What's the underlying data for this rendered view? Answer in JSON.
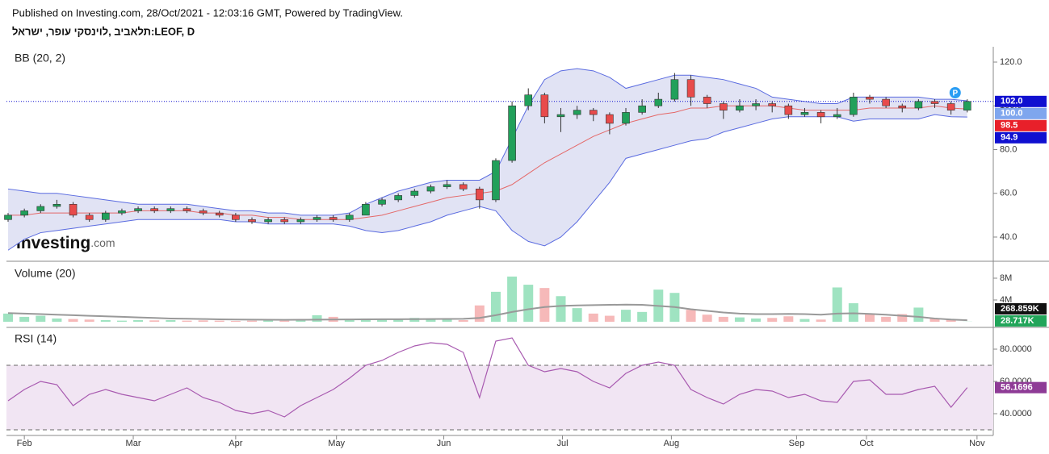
{
  "header": {
    "published": "Published on Investing.com, 28/Oct/2021 - 12:03:16 GMT, Powered by TradingView.",
    "symbol": "תלאביב ,לוינסקי עופר, ישראל:LEOF, D"
  },
  "watermark": {
    "brand": "Investing",
    "suffix": ".com"
  },
  "chart_data": [
    {
      "type": "candlestick",
      "title": "BB (20, 2)",
      "up_color": "#21a05a",
      "down_color": "#e84b4b",
      "open": [
        48,
        50,
        52,
        54,
        55,
        50,
        48,
        51,
        52,
        53,
        52,
        53,
        52,
        51,
        50,
        48,
        47,
        48,
        47,
        48,
        49,
        48,
        50,
        55,
        57,
        59,
        61,
        63,
        64,
        62,
        57,
        75,
        100,
        105,
        95,
        96,
        98,
        96,
        92,
        97,
        100,
        103,
        112,
        104,
        101,
        98,
        100,
        101,
        100,
        96,
        97,
        95,
        96,
        104,
        103,
        100,
        99,
        102,
        101,
        98
      ],
      "high": [
        51,
        53,
        55,
        57,
        56,
        51,
        52,
        53,
        54,
        54,
        54,
        54,
        53,
        52,
        51,
        49,
        49,
        49,
        49,
        50,
        50,
        51,
        56,
        58,
        60,
        62,
        64,
        66,
        65,
        63,
        76,
        102,
        108,
        106,
        99,
        100,
        99,
        97,
        99,
        103,
        106,
        115,
        114,
        105,
        102,
        103,
        103,
        102,
        101,
        99,
        98,
        99,
        106,
        105,
        104,
        101,
        103,
        103,
        102,
        103
      ],
      "low": [
        47,
        49,
        51,
        53,
        49,
        47,
        47,
        50,
        51,
        51,
        51,
        51,
        50,
        49,
        47,
        46,
        46,
        46,
        46,
        47,
        47,
        47,
        50,
        54,
        56,
        58,
        60,
        62,
        61,
        53,
        56,
        74,
        98,
        92,
        88,
        94,
        93,
        87,
        91,
        96,
        99,
        102,
        100,
        99,
        94,
        97,
        98,
        97,
        94,
        95,
        92,
        94,
        95,
        101,
        99,
        97,
        98,
        99,
        96,
        97
      ],
      "close": [
        50,
        52,
        54,
        55,
        50,
        48,
        51,
        52,
        53,
        52,
        53,
        52,
        51,
        50,
        48,
        47,
        48,
        47,
        48,
        49,
        48,
        50,
        55,
        57,
        59,
        61,
        63,
        64,
        62,
        57,
        75,
        100,
        105,
        95,
        96,
        98,
        96,
        92,
        97,
        100,
        103,
        112,
        104,
        101,
        98,
        100,
        101,
        100,
        96,
        97,
        95,
        96,
        104,
        103,
        100,
        99,
        102,
        101,
        98,
        102
      ],
      "bands": {
        "line_color": "#5a6be0",
        "middle_color": "#e46868",
        "fill": "#e1e3f4",
        "upper": [
          62,
          61,
          60,
          60,
          59,
          58,
          57,
          56,
          55,
          55,
          55,
          55,
          54,
          53,
          52,
          52,
          51,
          51,
          50,
          50,
          50,
          51,
          55,
          58,
          61,
          63,
          65,
          66,
          66,
          66,
          70,
          85,
          100,
          112,
          116,
          117,
          116,
          113,
          108,
          110,
          112,
          114,
          114,
          113,
          112,
          110,
          108,
          104,
          103,
          102,
          101,
          101,
          104,
          104,
          104,
          104,
          104,
          103,
          103,
          102.3
        ],
        "middle": [
          50,
          50,
          51,
          51,
          51,
          51,
          51,
          51,
          52,
          52,
          52,
          52,
          51,
          51,
          50,
          50,
          49,
          49,
          48,
          48,
          48,
          48,
          49,
          50,
          52,
          54,
          56,
          58,
          59,
          60,
          61,
          64,
          69,
          74,
          78,
          82,
          86,
          89,
          92,
          94,
          96,
          97,
          99,
          99,
          100,
          100,
          100,
          100,
          99,
          98,
          98,
          98,
          98,
          99,
          99,
          99,
          99,
          100,
          99,
          98.5
        ],
        "lower": [
          34,
          39,
          42,
          43,
          44,
          45,
          46,
          47,
          48,
          48,
          48,
          48,
          48,
          48,
          47,
          47,
          46,
          46,
          46,
          46,
          46,
          45,
          43,
          42,
          43,
          45,
          47,
          50,
          52,
          54,
          52,
          43,
          38,
          36,
          40,
          47,
          56,
          65,
          76,
          78,
          80,
          82,
          84,
          85,
          88,
          90,
          92,
          94,
          95,
          95,
          95,
          95,
          93,
          94,
          94,
          94,
          94,
          96,
          95,
          94.9
        ]
      },
      "ylim": [
        29.3,
        127
      ],
      "yticks": [
        {
          "value": 40,
          "label": "40.0"
        },
        {
          "value": 60,
          "label": "60.0"
        },
        {
          "value": 80,
          "label": "80.0"
        },
        {
          "value": 100,
          "label": "100.0"
        },
        {
          "value": 120,
          "label": "120.0"
        }
      ],
      "last_labels": [
        {
          "value": 102,
          "label": "102.0",
          "color": "#1010d0"
        },
        {
          "value": 100,
          "label": "100.0",
          "color": "#7fa6ee"
        },
        {
          "value": 98.5,
          "label": "98.5",
          "color": "#e8202a"
        },
        {
          "value": 94.9,
          "label": "94.9",
          "color": "#1010d0"
        }
      ],
      "marker": "P",
      "xlim": [
        -0.1,
        60.6
      ],
      "xticks": [
        {
          "value": 1,
          "label": "Feb"
        },
        {
          "value": 7.7,
          "label": "Mar"
        },
        {
          "value": 14,
          "label": "Apr"
        },
        {
          "value": 20.2,
          "label": "May"
        },
        {
          "value": 26.8,
          "label": "Jun"
        },
        {
          "value": 34.1,
          "label": "Jul"
        },
        {
          "value": 40.8,
          "label": "Aug"
        },
        {
          "value": 48.5,
          "label": "Sep"
        },
        {
          "value": 52.8,
          "label": "Oct"
        },
        {
          "value": 59.6,
          "label": "Nov"
        }
      ]
    },
    {
      "type": "bar",
      "title": "Volume (20)",
      "up_color": "#9fe3c1",
      "down_color": "#f6b9b9",
      "values": [
        1500000,
        900000,
        1100000,
        600000,
        500000,
        400000,
        300000,
        200000,
        300000,
        250000,
        300000,
        200000,
        250000,
        200000,
        150000,
        200000,
        250000,
        200000,
        300000,
        1200000,
        900000,
        500000,
        600000,
        400000,
        500000,
        700000,
        600000,
        400000,
        300000,
        3000000,
        5500000,
        8300000,
        6800000,
        6200000,
        4700000,
        2500000,
        1500000,
        1100000,
        2200000,
        1800000,
        5900000,
        5300000,
        2200000,
        1300000,
        900000,
        800000,
        600000,
        700000,
        1000000,
        500000,
        400000,
        6300000,
        3400000,
        1500000,
        900000,
        1400000,
        2600000,
        600000,
        400000,
        28717
      ],
      "ma": {
        "color": "#999999",
        "values": [
          1600000,
          1500000,
          1400000,
          1300000,
          1200000,
          1100000,
          1000000,
          900000,
          800000,
          700000,
          600000,
          550000,
          500000,
          450000,
          400000,
          380000,
          360000,
          350000,
          360000,
          380000,
          400000,
          420000,
          450000,
          460000,
          470000,
          480000,
          500000,
          520000,
          540000,
          700000,
          1200000,
          1800000,
          2300000,
          2700000,
          2900000,
          3000000,
          3050000,
          3100000,
          3150000,
          3100000,
          2900000,
          2700000,
          2300000,
          2000000,
          1700000,
          1500000,
          1400000,
          1400000,
          1450000,
          1400000,
          1300000,
          1500000,
          1550000,
          1450000,
          1300000,
          1100000,
          900000,
          600000,
          400000,
          268859
        ]
      },
      "ylim": [
        -890000,
        10960000
      ],
      "yticks": [
        {
          "value": 4000000,
          "label": "4M"
        },
        {
          "value": 8000000,
          "label": "8M"
        }
      ],
      "last_labels": [
        {
          "value": 268859,
          "label": "268.859K",
          "color": "#111111"
        },
        {
          "value": 28717,
          "label": "28.717K",
          "color": "#22a55a"
        }
      ]
    },
    {
      "type": "line",
      "title": "RSI (14)",
      "color": "#a85ab0",
      "band_fill": "#f1e5f3",
      "levels": [
        70,
        30
      ],
      "values": [
        48,
        55,
        60,
        58,
        45,
        52,
        55,
        52,
        50,
        48,
        52,
        56,
        50,
        47,
        42,
        40,
        42,
        38,
        45,
        50,
        55,
        62,
        70,
        73,
        78,
        82,
        84,
        83,
        78,
        50,
        85,
        87,
        70,
        66,
        68,
        66,
        60,
        56,
        65,
        70,
        72,
        70,
        55,
        50,
        46,
        52,
        55,
        54,
        50,
        52,
        48,
        47,
        60,
        61,
        52,
        52,
        55,
        57,
        44,
        56.1696
      ],
      "ylim": [
        26.5,
        93
      ],
      "yticks": [
        {
          "value": 40,
          "label": "40.0000"
        },
        {
          "value": 60,
          "label": "60.0000"
        },
        {
          "value": 80,
          "label": "80.0000"
        }
      ],
      "last_labels": [
        {
          "value": 56.1696,
          "label": "56.1696",
          "color": "#8e3b96"
        }
      ]
    }
  ]
}
